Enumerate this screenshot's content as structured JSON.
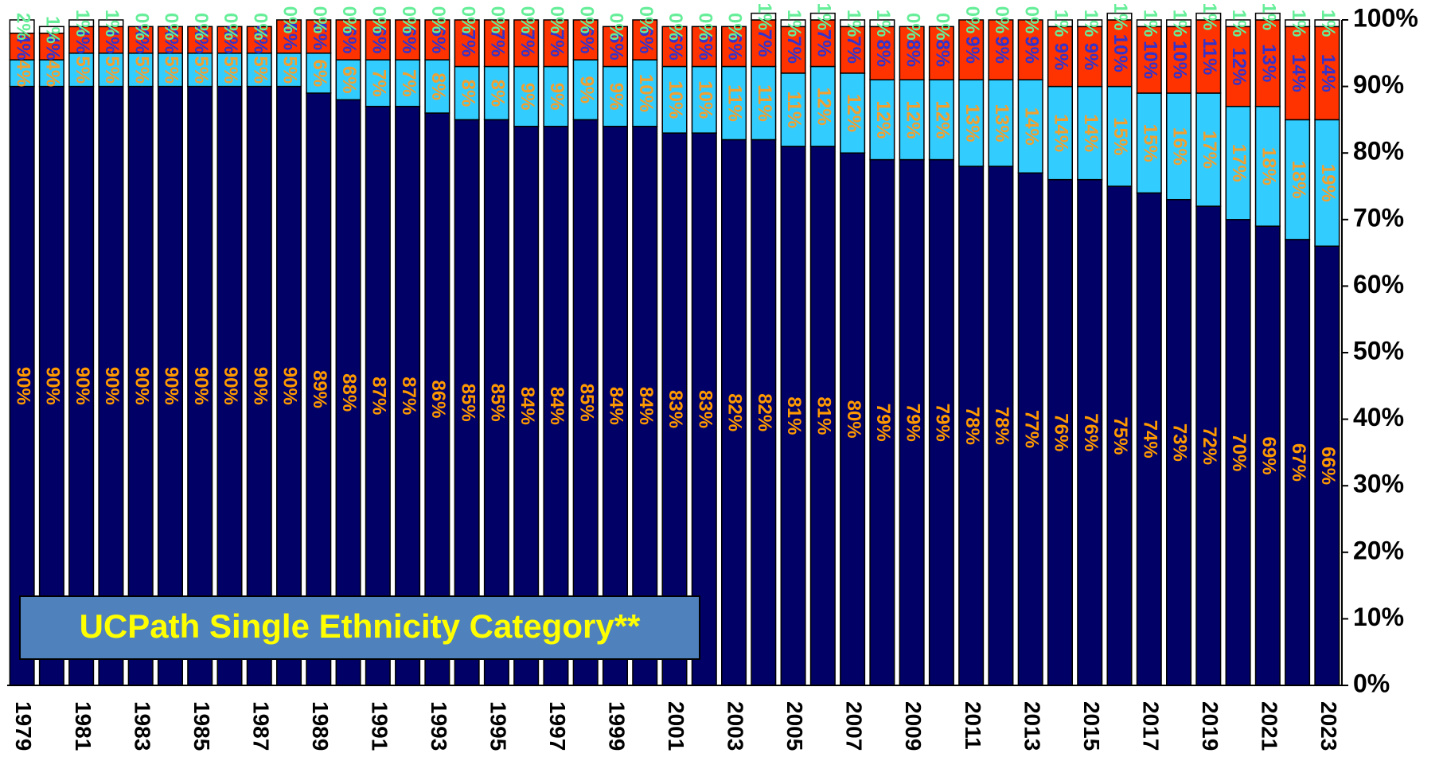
{
  "chart_data": {
    "type": "stacked_bar",
    "annotation": "UCPath Single Ethnicity Category**",
    "categories": [
      "1979",
      null,
      "1981",
      null,
      "1983",
      null,
      "1985",
      null,
      "1987",
      null,
      "1989",
      null,
      "1991",
      null,
      "1993",
      null,
      "1995",
      null,
      "1997",
      null,
      "1999",
      null,
      "2001",
      null,
      "2003",
      null,
      "2005",
      null,
      "2007",
      null,
      "2009",
      null,
      "2011",
      null,
      "2013",
      null,
      "2015",
      null,
      "2017",
      null,
      "2019",
      null,
      "2021",
      null,
      "2023"
    ],
    "series": [
      {
        "color": "#000066",
        "label_color": "#ff9900",
        "values": [
          90,
          90,
          90,
          90,
          90,
          90,
          90,
          90,
          90,
          90,
          89,
          88,
          87,
          87,
          86,
          85,
          85,
          84,
          84,
          85,
          84,
          84,
          83,
          83,
          82,
          82,
          81,
          81,
          80,
          79,
          79,
          79,
          78,
          78,
          77,
          76,
          76,
          75,
          74,
          73,
          72,
          70,
          69,
          67,
          66
        ],
        "value_labels": [
          "90%",
          "90%",
          "90%",
          "90%",
          "90%",
          "90%",
          "90%",
          "90%",
          "90%",
          "90%",
          "89%",
          "88%",
          "87%",
          "87%",
          "86%",
          "85%",
          "85%",
          "84%",
          "84%",
          "85%",
          "84%",
          "84%",
          "83%",
          "83%",
          "82%",
          "82%",
          "81%",
          "81%",
          "80%",
          "79%",
          "79%",
          "79%",
          "78%",
          "78%",
          "77%",
          "76%",
          "76%",
          "75%",
          "74%",
          "73%",
          "72%",
          "70%",
          "69%",
          "67%",
          "66%"
        ]
      },
      {
        "color": "#33ccff",
        "label_color": "#f0a030",
        "values": [
          4,
          4,
          5,
          5,
          5,
          5,
          5,
          5,
          5,
          5,
          6,
          6,
          7,
          7,
          8,
          8,
          8,
          9,
          9,
          9,
          9,
          10,
          10,
          10,
          11,
          11,
          11,
          12,
          12,
          12,
          12,
          12,
          13,
          13,
          14,
          14,
          14,
          15,
          15,
          16,
          17,
          17,
          18,
          18,
          19
        ],
        "value_labels": [
          "4%",
          "4%",
          "5%",
          "5%",
          "5%",
          "5%",
          "5%",
          "5%",
          "5%",
          "5%",
          "6%",
          "6%",
          "7%",
          "7%",
          "8%",
          "8%",
          "8%",
          "9%",
          "9%",
          "9%",
          "9%",
          "10%",
          "10%",
          "10%",
          "11%",
          "11%",
          "11%",
          "12%",
          "12%",
          "12%",
          "12%",
          "12%",
          "13%",
          "13%",
          "14%",
          "14%",
          "14%",
          "15%",
          "15%",
          "16%",
          "17%",
          "17%",
          "18%",
          "18%",
          "19%"
        ]
      },
      {
        "color": "#ff3300",
        "label_color": "#3333cc",
        "values": [
          4,
          4,
          4,
          4,
          4,
          4,
          4,
          4,
          4,
          5,
          5,
          6,
          6,
          6,
          6,
          7,
          7,
          7,
          7,
          6,
          6,
          6,
          6,
          6,
          6,
          7,
          7,
          7,
          7,
          8,
          8,
          8,
          9,
          9,
          9,
          9,
          9,
          10,
          10,
          10,
          11,
          12,
          13,
          14,
          14
        ],
        "value_labels": [
          "4%",
          "4%",
          "4%",
          "4%",
          "4%",
          "4%",
          "4%",
          "4%",
          "4%",
          "5%",
          "5%",
          "6%",
          "6%",
          "6%",
          "6%",
          "7%",
          "7%",
          "7%",
          "7%",
          "6%",
          "6%",
          "6%",
          "6%",
          "6%",
          "6%",
          "7%",
          "7%",
          "7%",
          "7%",
          "8%",
          "8%",
          "8%",
          "9%",
          "9%",
          "9%",
          "9%",
          "9%",
          "10%",
          "10%",
          "10%",
          "11%",
          "12%",
          "13%",
          "14%",
          "14%"
        ]
      },
      {
        "color": "#ffffff",
        "label_color": "#66ee99",
        "values": [
          2,
          1,
          1,
          1,
          0,
          0,
          0,
          0,
          0,
          0,
          0,
          0,
          0,
          0,
          0,
          0,
          0,
          0,
          0,
          0,
          0,
          0,
          0,
          0,
          0,
          1,
          1,
          1,
          1,
          1,
          0,
          0,
          0,
          0,
          0,
          1,
          1,
          1,
          1,
          1,
          1,
          1,
          1,
          1,
          1
        ],
        "value_labels": [
          "2%",
          "1%",
          "1%",
          "1%",
          "0%",
          "0%",
          "0%",
          "0%",
          "0%",
          "0%",
          "0%",
          "0%",
          "0%",
          "0%",
          "0%",
          "0%",
          "0%",
          "0%",
          "0%",
          "0%",
          "0%",
          "0%",
          "0%",
          "0%",
          "0%",
          "1%",
          "1%",
          "1%",
          "1%",
          "1%",
          "0%",
          "0%",
          "0%",
          "0%",
          "0%",
          "1%",
          "1%",
          "1%",
          "1%",
          "1%",
          "1%",
          "1%",
          "1%",
          "1%",
          "1%"
        ]
      }
    ],
    "ylim": [
      0,
      100
    ],
    "yticks": [
      {
        "value": 0,
        "label": "0%"
      },
      {
        "value": 10,
        "label": "10%"
      },
      {
        "value": 20,
        "label": "20%"
      },
      {
        "value": 30,
        "label": "30%"
      },
      {
        "value": 40,
        "label": "40%"
      },
      {
        "value": 50,
        "label": "50%"
      },
      {
        "value": 60,
        "label": "60%"
      },
      {
        "value": 70,
        "label": "70%"
      },
      {
        "value": 80,
        "label": "80%"
      },
      {
        "value": 90,
        "label": "90%"
      },
      {
        "value": 100,
        "label": "100%"
      }
    ],
    "grid": false
  }
}
